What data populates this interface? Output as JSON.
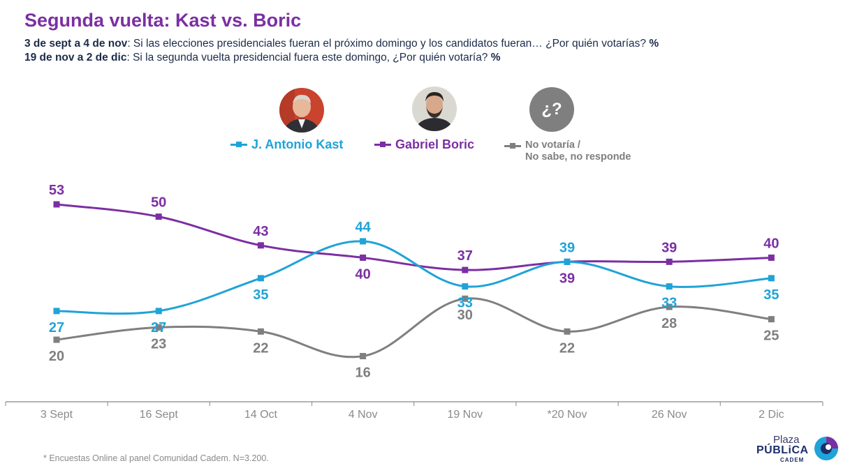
{
  "header": {
    "title": "Segunda vuelta: Kast vs. Boric",
    "sub1_bold": "3 de sept a 4 de nov",
    "sub1_text": ": Si las elecciones presidenciales fueran el próximo domingo y los candidatos fueran… ¿Por quién votarías?",
    "sub1_pct": "%",
    "sub2_bold": "19 de nov a 2 de dic",
    "sub2_text": ": Si la segunda vuelta presidencial fuera este domingo, ¿Por quién votaría?",
    "sub2_pct": "%"
  },
  "legend": {
    "kast": "J. Antonio Kast",
    "boric": "Gabriel Boric",
    "nv_line1": "No votaría /",
    "nv_line2": "No sabe, no responde",
    "unknown_symbol": "¿?"
  },
  "colors": {
    "kast": "#1fa3d8",
    "boric": "#7b2fa3",
    "nv": "#7f7f7f",
    "title": "#7b2fa3",
    "subtitle": "#1c2b4a"
  },
  "chart_data": {
    "type": "line",
    "categories": [
      "3 Sept",
      "16 Sept",
      "14 Oct",
      "4 Nov",
      "19 Nov",
      "*20 Nov",
      "26 Nov",
      "2 Dic"
    ],
    "series": [
      {
        "name": "J. Antonio Kast",
        "values": [
          27,
          27,
          35,
          44,
          33,
          39,
          33,
          35
        ]
      },
      {
        "name": "Gabriel Boric",
        "values": [
          53,
          50,
          43,
          40,
          37,
          39,
          39,
          40
        ]
      },
      {
        "name": "No votaría / No sabe, no responde",
        "values": [
          20,
          23,
          22,
          16,
          30,
          22,
          28,
          25
        ]
      }
    ],
    "ylim": [
      10,
      60
    ],
    "grid": false,
    "legend_position": "top-center",
    "title": "Segunda vuelta: Kast vs. Boric",
    "xlabel": "",
    "ylabel": ""
  },
  "footnote": "* Encuestas Online al panel Comunidad Cadem. N=3.200.",
  "logo": {
    "line1": "Plaza",
    "line2": "PÚBLiCA",
    "line3": "CADEM"
  }
}
